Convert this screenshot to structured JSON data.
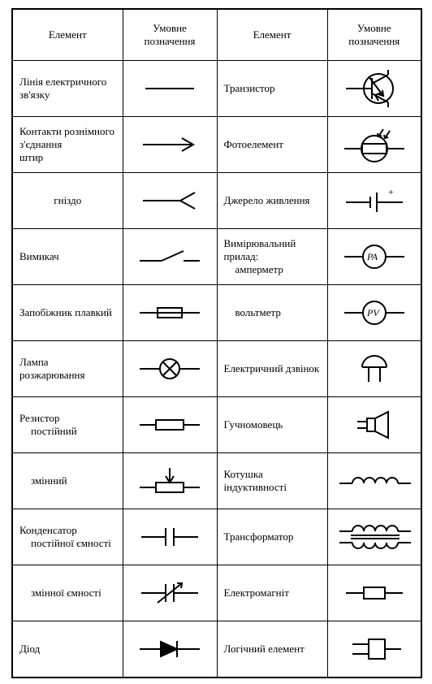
{
  "table": {
    "headers": {
      "element": "Елемент",
      "symbol": "Умовне\nпозначення"
    },
    "stroke_color": "#000000",
    "background_color": "#ffffff",
    "font_family": "Times New Roman",
    "font_size_pt": 10,
    "rows": [
      {
        "left_label": "Лінія електричного зв'язку",
        "left_symbol": "wire-line",
        "right_label": "Транзистор",
        "right_symbol": "transistor"
      },
      {
        "left_label": "Контакти рознімного з'єднання\n   штир",
        "left_symbol": "connector-pin-arrow",
        "right_label": "Фотоелемент",
        "right_symbol": "photo-element"
      },
      {
        "left_label": "гніздо",
        "left_center": true,
        "left_symbol": "connector-socket",
        "right_label": "Джерело живлення",
        "right_symbol": "power-source",
        "right_plus": "+"
      },
      {
        "left_label": "Вимикач",
        "left_symbol": "switch",
        "right_label": "Вимірювальний прилад:",
        "right_sub": "амперметр",
        "right_symbol": "ammeter",
        "right_meter_text": "PA"
      },
      {
        "left_label": "Запобіжник плавкий",
        "left_symbol": "fuse",
        "right_label": "вольтметр",
        "right_indent": true,
        "right_symbol": "voltmeter",
        "right_meter_text": "PV"
      },
      {
        "left_label": "Лампа розжарювання",
        "left_symbol": "lamp",
        "right_label": "Електричний дзвінок",
        "right_symbol": "bell"
      },
      {
        "left_label": "Резистор",
        "left_sub": "постійний",
        "left_symbol": "resistor",
        "right_label": "Гучномовець",
        "right_symbol": "speaker"
      },
      {
        "left_label": "змінний",
        "left_indent": true,
        "left_symbol": "variable-resistor",
        "right_label": "Котушка індуктивності",
        "right_symbol": "inductor"
      },
      {
        "left_label": "Конденсатор",
        "left_sub": "постійної ємності",
        "left_symbol": "capacitor",
        "right_label": "Трансформатор",
        "right_symbol": "transformer"
      },
      {
        "left_label": "змінної ємності",
        "left_indent": true,
        "left_symbol": "variable-capacitor",
        "right_label": "Електромагніт",
        "right_symbol": "electromagnet"
      },
      {
        "left_label": "Діод",
        "left_symbol": "diode",
        "right_label": "Логічний елемент",
        "right_symbol": "logic-element"
      }
    ],
    "symbol_svgs": {
      "wire-line": "<svg width='90' height='30' viewBox='0 0 90 30'><line x1='15' y1='15' x2='75' y2='15'/></svg>",
      "connector-pin-arrow": "<svg width='90' height='30' viewBox='0 0 90 30'><line x1='12' y1='15' x2='72' y2='15'/><polyline points='60,7 74,15 60,23'/></svg>",
      "connector-socket": "<svg width='90' height='30' viewBox='0 0 90 30'><line x1='12' y1='15' x2='58' y2='15'/><polyline points='76,5 58,15 76,25'/></svg>",
      "switch": "<svg width='90' height='30' viewBox='0 0 90 30'><line x1='8' y1='20' x2='35' y2='20'/><line x1='35' y1='20' x2='62' y2='8'/><line x1='62' y1='20' x2='82' y2='20'/></svg>",
      "fuse": "<svg width='90' height='30' viewBox='0 0 90 30'><line x1='8' y1='15' x2='30' y2='15'/><rect x='30' y='9' width='30' height='12'/><line x1='30' y1='15' x2='60' y2='15'/><line x1='60' y1='15' x2='82' y2='15'/></svg>",
      "lamp": "<svg width='90' height='36' viewBox='0 0 90 36'><line x1='8' y1='18' x2='32' y2='18'/><circle cx='45' cy='18' r='12'/><line x1='36.5' y1='9.5' x2='53.5' y2='26.5'/><line x1='53.5' y1='9.5' x2='36.5' y2='26.5'/><line x1='58' y1='18' x2='82' y2='18'/></svg>",
      "resistor": "<svg width='90' height='30' viewBox='0 0 90 30'><line x1='8' y1='15' x2='28' y2='15'/><rect x='28' y='9' width='34' height='12'/><line x1='62' y1='15' x2='82' y2='15'/></svg>",
      "variable-resistor": "<svg width='90' height='44' viewBox='0 0 90 44'><line x1='8' y1='30' x2='28' y2='30'/><rect x='28' y='24' width='34' height='12'/><line x1='62' y1='30' x2='82' y2='30'/><line x1='45' y1='6' x2='45' y2='24'/><polyline points='40,16 45,24 50,16'/></svg>",
      "capacitor": "<svg width='90' height='30' viewBox='0 0 90 30'><line x1='10' y1='15' x2='40' y2='15'/><line x1='40' y1='4' x2='40' y2='26'/><line x1='50' y1='4' x2='50' y2='26'/><line x1='50' y1='15' x2='80' y2='15'/></svg>",
      "variable-capacitor": "<svg width='90' height='36' viewBox='0 0 90 36'><line x1='10' y1='18' x2='40' y2='18'/><line x1='40' y1='7' x2='40' y2='29'/><line x1='50' y1='7' x2='50' y2='29'/><line x1='50' y1='18' x2='80' y2='18'/><line x1='30' y1='30' x2='60' y2='6'/><polyline points='54,6 60,6 59,12'/></svg>",
      "diode": "<svg width='90' height='30' viewBox='0 0 90 30'><line x1='8' y1='15' x2='34' y2='15'/><polygon points='34,6 34,24 54,15' fill='#000' stroke='#000'/><line x1='54' y1='5' x2='54' y2='25'/><line x1='54' y1='15' x2='82' y2='15'/></svg>",
      "transistor": "<svg width='90' height='50' viewBox='0 0 90 50'><circle cx='50' cy='25' r='18'/><line x1='10' y1='25' x2='42' y2='25'/><line x1='42' y1='12' x2='42' y2='38'/><line x1='42' y1='19' x2='62' y2='8'/><line x1='62' y1='8' x2='62' y2='2'/><line x1='42' y1='31' x2='62' y2='42'/><line x1='62' y1='42' x2='62' y2='48'/><polyline points='54,30 46,33 50,40'/><line x1='38' y1='10' x2='56' y2='34'/><polyline points='50,32 56,34 55,27'/></svg>",
      "photo-element": "<svg width='90' height='46' viewBox='0 0 90 46'><line x1='8' y1='28' x2='30' y2='28'/><rect x='30' y='22' width='30' height='12'/><line x1='60' y1='28' x2='82' y2='28'/><circle cx='45' cy='28' r='16'/><line x1='56' y1='4' x2='50' y2='13'/><polyline points='49,9 50,13 54,12'/><line x1='64' y1='6' x2='58' y2='15'/><polyline points='57,11 58,15 62,14'/></svg>",
      "power-source": "<svg width='90' height='36' viewBox='0 0 90 36'><line x1='10' y1='20' x2='40' y2='20'/><line x1='40' y1='13' x2='40' y2='27'/><line x1='48' y1='8' x2='48' y2='32'/><line x1='48' y1='20' x2='80' y2='20'/><text x='62' y='11' font-size='12'>+</text></svg>",
      "ammeter": "<svg width='90' height='40' viewBox='0 0 90 40'><line x1='8' y1='20' x2='30' y2='20'/><circle cx='45' cy='20' r='14'/><line x1='60' y1='20' x2='82' y2='20'/><text x='36' y='24' font-size='12' font-style='italic'>PA</text></svg>",
      "voltmeter": "<svg width='90' height='40' viewBox='0 0 90 40'><line x1='8' y1='20' x2='30' y2='20'/><circle cx='45' cy='20' r='14'/><line x1='60' y1='20' x2='82' y2='20'/><text x='36' y='24' font-size='12' font-style='italic'>PV</text></svg>",
      "bell": "<svg width='90' height='44' viewBox='0 0 90 44'><path d='M30 20 A15 14 0 0 1 60 20'/><line x1='30' y1='20' x2='60' y2='20'/><line x1='38' y1='20' x2='38' y2='38'/><line x1='52' y1='20' x2='52' y2='38'/></svg>",
      "speaker": "<svg width='90' height='44' viewBox='0 0 90 44'><rect x='36' y='14' width='10' height='16'/><polygon points='46,14 62,6 62,38 46,30'/><line x1='36' y1='18' x2='24' y2='18'/><line x1='36' y1='26' x2='24' y2='26'/></svg>",
      "inductor": "<svg width='100' height='30' viewBox='0 0 100 30'><line x1='6' y1='18' x2='22' y2='18'/><path d='M22 18 A7 7 0 0 1 36 18'/><path d='M36 18 A7 7 0 0 1 50 18'/><path d='M50 18 A7 7 0 0 1 64 18'/><path d='M64 18 A7 7 0 0 1 78 18'/><line x1='78' y1='18' x2='94' y2='18'/></svg>",
      "transformer": "<svg width='100' height='50' viewBox='0 0 100 50'><line x1='6' y1='18' x2='22' y2='18'/><path d='M22 18 A7 7 0 0 1 36 18'/><path d='M36 18 A7 7 0 0 1 50 18'/><path d='M50 18 A7 7 0 0 1 64 18'/><path d='M64 18 A7 7 0 0 1 78 18'/><line x1='78' y1='18' x2='94' y2='18'/><line x1='20' y1='23' x2='80' y2='23'/><line x1='20' y1='27' x2='80' y2='27'/><line x1='6' y1='32' x2='22' y2='32'/><path d='M22 32 A7 7 0 0 0 36 32'/><path d='M36 32 A7 7 0 0 0 50 32'/><path d='M50 32 A7 7 0 0 0 64 32'/><path d='M64 32 A7 7 0 0 0 78 32'/><line x1='78' y1='32' x2='94' y2='32'/></svg>",
      "electromagnet": "<svg width='90' height='34' viewBox='0 0 90 34'><line x1='10' y1='17' x2='32' y2='17'/><rect x='32' y='10' width='26' height='14'/><line x1='58' y1='17' x2='80' y2='17'/></svg>",
      "logic-element": "<svg width='90' height='40' viewBox='0 0 90 40'><rect x='38' y='8' width='20' height='24'/><line x1='18' y1='14' x2='38' y2='14'/><line x1='18' y1='26' x2='38' y2='26'/><line x1='58' y1='20' x2='78' y2='20'/></svg>"
    }
  }
}
